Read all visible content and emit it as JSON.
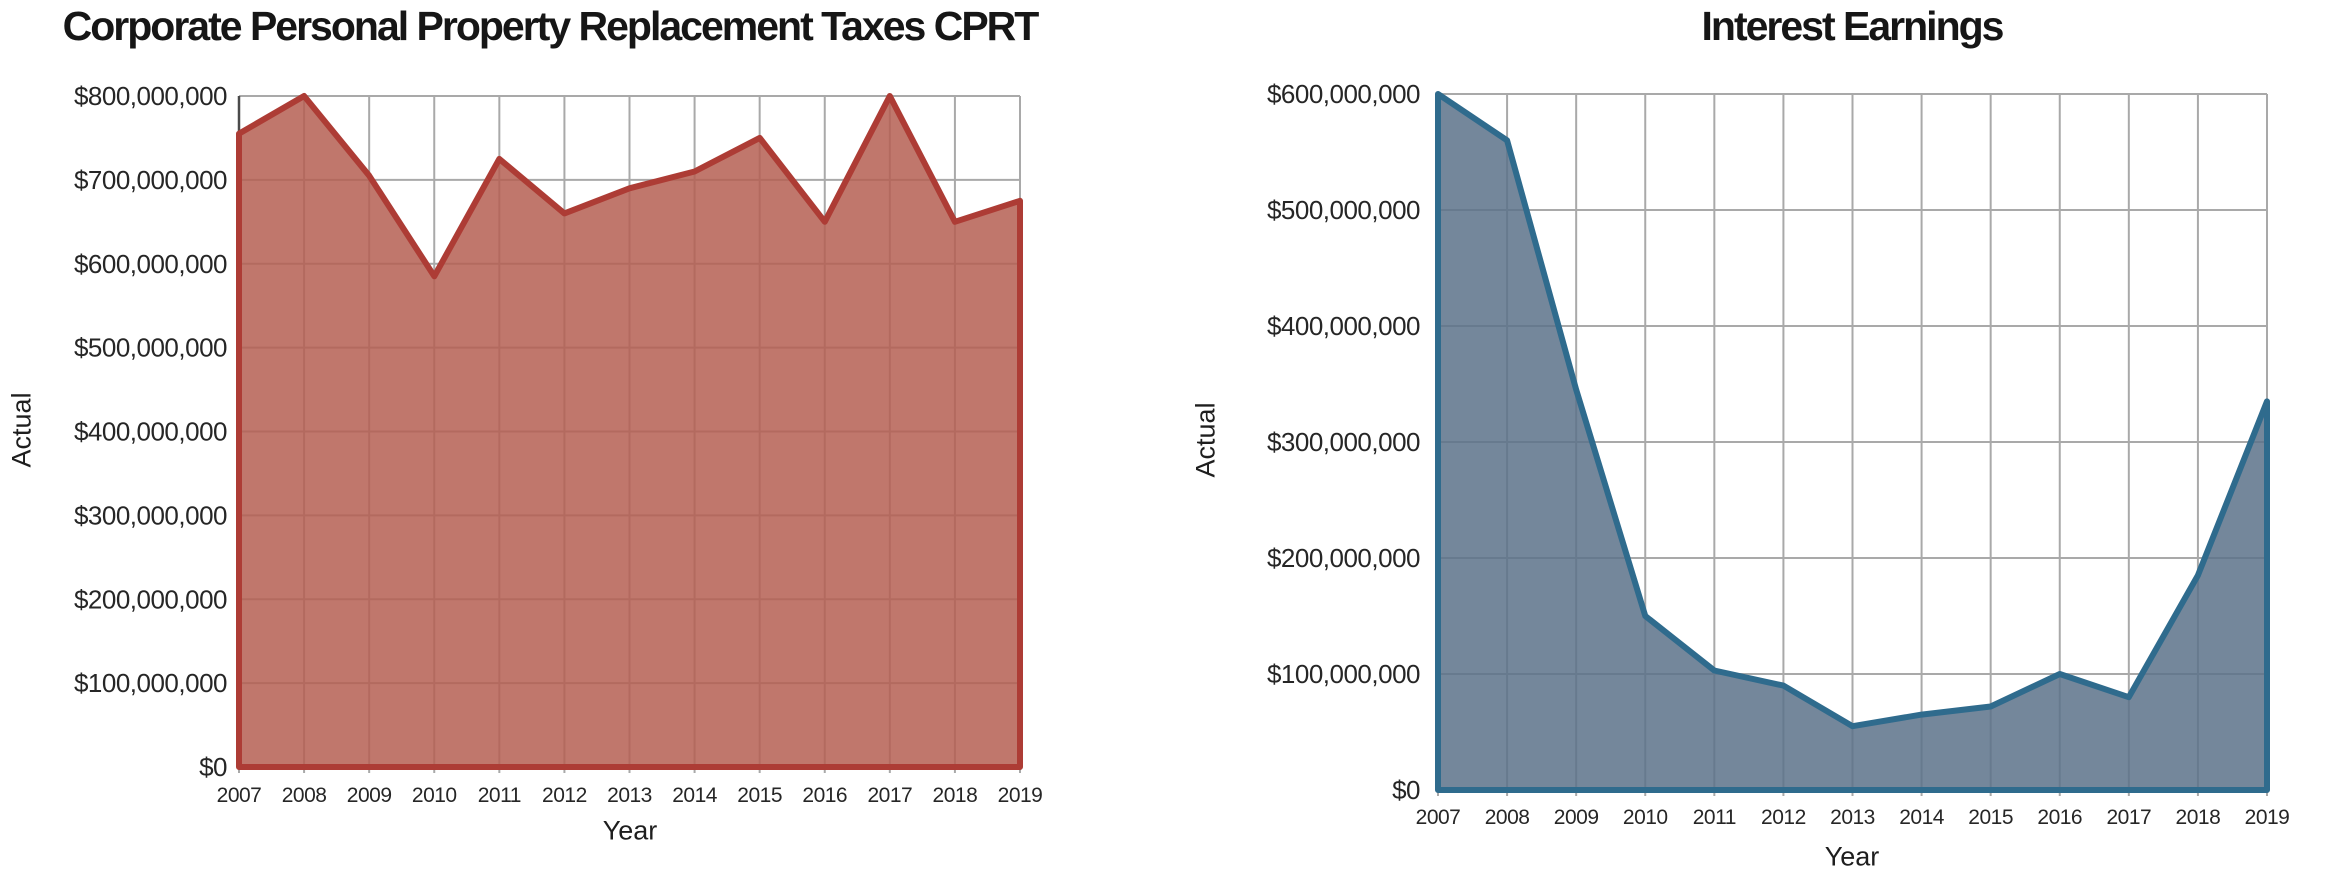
{
  "page": {
    "background": "#ffffff"
  },
  "chart_data": [
    {
      "type": "area",
      "title": "Corporate Personal Property Replacement Taxes CPRT",
      "xlabel": "Year",
      "ylabel": "Actual",
      "categories": [
        "2007",
        "2008",
        "2009",
        "2010",
        "2011",
        "2012",
        "2013",
        "2014",
        "2015",
        "2016",
        "2017",
        "2018",
        "2019"
      ],
      "values": [
        755000000,
        800000000,
        705000000,
        585000000,
        725000000,
        660000000,
        690000000,
        710000000,
        750000000,
        650000000,
        800000000,
        650000000,
        675000000
      ],
      "ylim": [
        0,
        800000000
      ],
      "ytick_step": 100000000,
      "y_tick_labels": [
        "$0",
        "$100,000,000",
        "$200,000,000",
        "$300,000,000",
        "$400,000,000",
        "$500,000,000",
        "$600,000,000",
        "$700,000,000",
        "$800,000,000"
      ],
      "grid": true,
      "legend": null,
      "fill_color": "#b55f52",
      "fill_opacity": 0.85,
      "line_color": "#ad3c35",
      "gridline_color": "#a9a9a9",
      "axis_color": "#4b4b4b"
    },
    {
      "type": "area",
      "title": "Interest Earnings",
      "xlabel": "Year",
      "ylabel": "Actual",
      "categories": [
        "2007",
        "2008",
        "2009",
        "2010",
        "2011",
        "2012",
        "2013",
        "2014",
        "2015",
        "2016",
        "2017",
        "2018",
        "2019"
      ],
      "values": [
        600000000,
        560000000,
        345000000,
        150000000,
        103000000,
        90000000,
        55000000,
        65000000,
        72000000,
        100000000,
        80000000,
        185000000,
        335000000
      ],
      "ylim": [
        0,
        600000000
      ],
      "ytick_step": 100000000,
      "y_tick_labels": [
        "$0",
        "$100,000,000",
        "$200,000,000",
        "$300,000,000",
        "$400,000,000",
        "$500,000,000",
        "$600,000,000"
      ],
      "grid": true,
      "legend": null,
      "fill_color": "#5c728a",
      "fill_opacity": 0.85,
      "line_color": "#2f6b8d",
      "gridline_color": "#a9a9a9",
      "axis_color": "#4b4b4b"
    }
  ]
}
